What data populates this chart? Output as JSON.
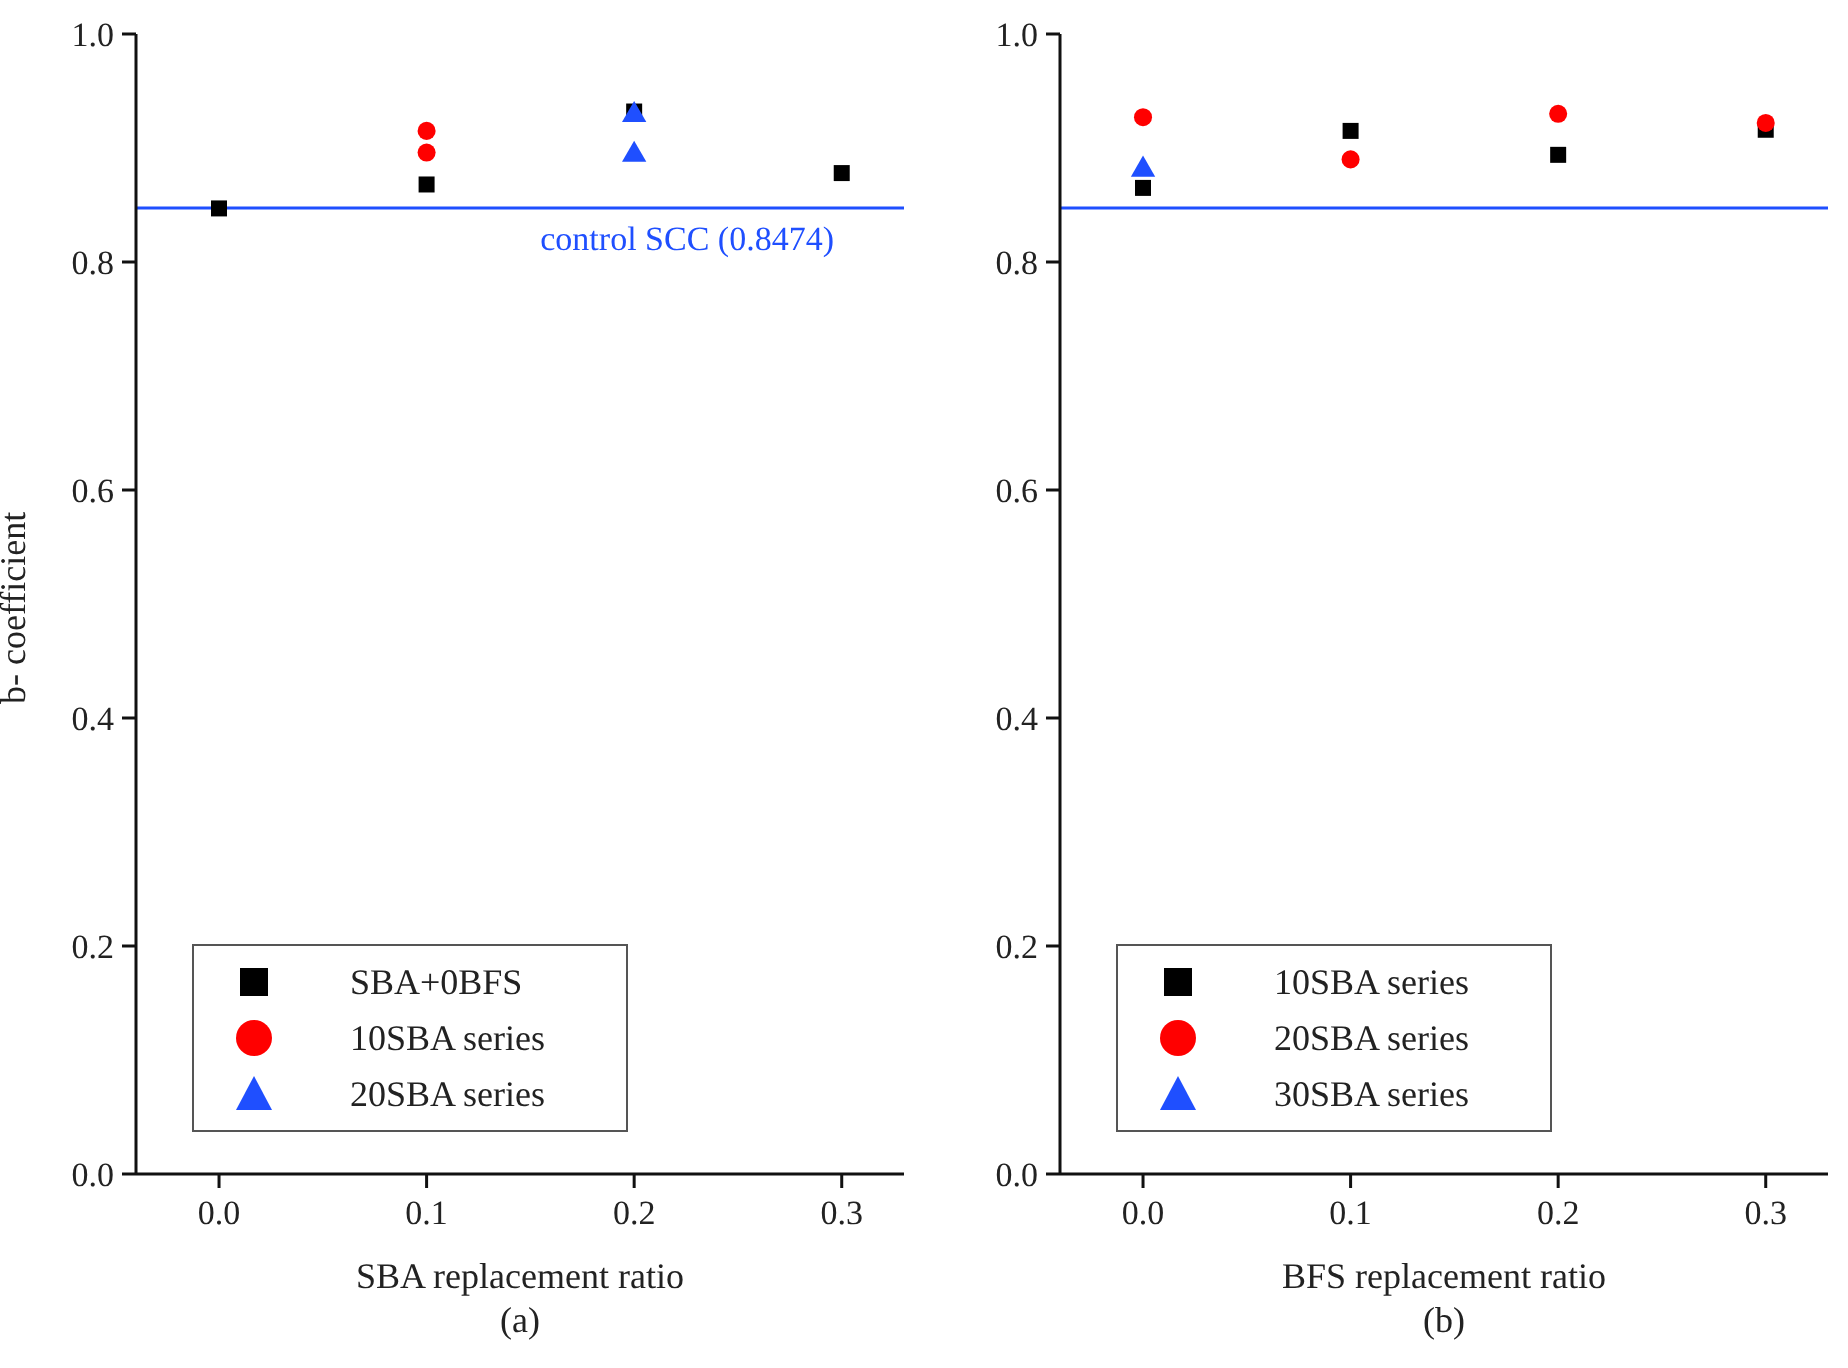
{
  "chart_data": [
    {
      "type": "scatter",
      "ylabel": "b- coefficient",
      "xlabel": "SBA replacement ratio",
      "annotations": [
        "(a)"
      ],
      "xlim": [
        -0.04,
        0.33
      ],
      "xticks": [
        {
          "value": 0,
          "label": "0.0"
        },
        {
          "value": 0.1,
          "label": "0.1"
        },
        {
          "value": 0.2,
          "label": "0.2"
        },
        {
          "value": 0.3,
          "label": "0.3"
        }
      ],
      "ylim": [
        0,
        1
      ],
      "yticks": [
        {
          "value": 0,
          "label": "0.0"
        },
        {
          "value": 0.2,
          "label": "0.2"
        },
        {
          "value": 0.4,
          "label": "0.4"
        },
        {
          "value": 0.6,
          "label": "0.6"
        },
        {
          "value": 0.8,
          "label": "0.8"
        },
        {
          "value": 1,
          "label": "1.0"
        }
      ],
      "ref_lines": [
        {
          "axis": "y",
          "value": 0.8474,
          "label": "control SCC (0.8474)",
          "color": "#1f4fff"
        }
      ],
      "legend": "bottom left",
      "grid": false,
      "series": [
        {
          "name": "SBA+0BFS",
          "color": "#000000",
          "marker": "square",
          "x": [
            0,
            0.1,
            0.2,
            0.3
          ],
          "values": [
            0.847,
            0.868,
            0.932,
            0.878
          ]
        },
        {
          "name": "10SBA series",
          "color": "#ff0000",
          "marker": "circle",
          "x": [
            0.1,
            0.1
          ],
          "values": [
            0.915,
            0.896
          ]
        },
        {
          "name": "20SBA series",
          "color": "#1f4fff",
          "marker": "triangle",
          "x": [
            0.2,
            0.2
          ],
          "values": [
            0.929,
            0.894
          ]
        }
      ]
    },
    {
      "type": "scatter",
      "xlabel": "BFS replacement ratio",
      "annotations": [
        "(b)"
      ],
      "xlim": [
        -0.04,
        0.33
      ],
      "xticks": [
        {
          "value": 0,
          "label": "0.0"
        },
        {
          "value": 0.1,
          "label": "0.1"
        },
        {
          "value": 0.2,
          "label": "0.2"
        },
        {
          "value": 0.3,
          "label": "0.3"
        }
      ],
      "ylim": [
        0,
        1
      ],
      "yticks": [
        {
          "value": 0,
          "label": "0.0"
        },
        {
          "value": 0.2,
          "label": "0.2"
        },
        {
          "value": 0.4,
          "label": "0.4"
        },
        {
          "value": 0.6,
          "label": "0.6"
        },
        {
          "value": 0.8,
          "label": "0.8"
        },
        {
          "value": 1,
          "label": "1.0"
        }
      ],
      "ref_lines": [
        {
          "axis": "y",
          "value": 0.8474,
          "label": null,
          "color": "#1f4fff"
        }
      ],
      "legend": "bottom left",
      "grid": false,
      "series": [
        {
          "name": "10SBA series",
          "color": "#000000",
          "marker": "square",
          "x": [
            0,
            0.1,
            0.2,
            0.3
          ],
          "values": [
            0.865,
            0.915,
            0.894,
            0.916
          ]
        },
        {
          "name": "20SBA series",
          "color": "#ff0000",
          "marker": "circle",
          "x": [
            0,
            0.1,
            0.2,
            0.3
          ],
          "values": [
            0.927,
            0.89,
            0.93,
            0.922
          ]
        },
        {
          "name": "30SBA series",
          "color": "#1f4fff",
          "marker": "triangle",
          "x": [
            0
          ],
          "values": [
            0.881
          ]
        }
      ]
    }
  ]
}
